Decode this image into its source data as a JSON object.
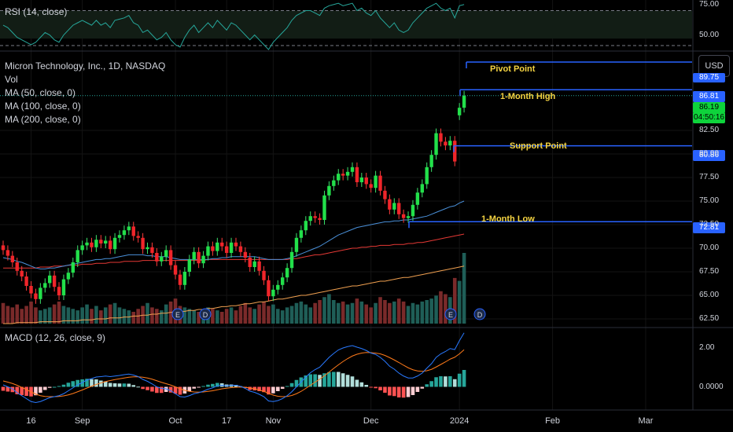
{
  "legend": {
    "rsi": "RSI (14, close)",
    "title": "Micron Technology, Inc., 1D, NASDAQ",
    "vol": "Vol",
    "ma50": "MA (50, close, 0)",
    "ma100": "MA (100, close, 0)",
    "ma200": "MA (200, close, 0)",
    "macd": "MACD (12, 26, close, 9)"
  },
  "currency_button": "USD",
  "price_tags": {
    "pivot": "89.75",
    "high": "86.81",
    "last": "86.19",
    "countdown": "04:50:16",
    "support": "80.86",
    "low": "72.81"
  },
  "annotations": {
    "pivot": "Pivot Point",
    "high": "1-Month High",
    "support": "Support Point",
    "low": "1-Month Low"
  },
  "colors": {
    "up": "#26a69a",
    "down": "#ef5350",
    "ma50": "#4a90d9",
    "ma100": "#e53935",
    "ma200": "#f0a050",
    "macd": "#2979ff",
    "signal": "#ff7a1a",
    "level_line": "#2962ff",
    "annotation": "#f5d442",
    "rsi_line": "#26a69a"
  },
  "chart_data": {
    "type": "candlestick",
    "price_axis": {
      "ticks": [
        62.5,
        65.0,
        67.5,
        70.0,
        72.5,
        75.0,
        77.5,
        80.0,
        82.5
      ],
      "ylim": [
        62.0,
        90.5
      ]
    },
    "rsi_axis": {
      "ticks": [
        "75.00",
        "50.00"
      ],
      "ylim": [
        40,
        80
      ],
      "bands": [
        70,
        30
      ]
    },
    "macd_axis": {
      "ticks": [
        "2.00",
        "0.0000"
      ],
      "ylim": [
        -1.1,
        2.9
      ]
    },
    "x_ticks": [
      {
        "label": "16",
        "index": 6
      },
      {
        "label": "Sep",
        "index": 17
      },
      {
        "label": "Oct",
        "index": 37
      },
      {
        "label": "17",
        "index": 48
      },
      {
        "label": "Nov",
        "index": 58
      },
      {
        "label": "Dec",
        "index": 79
      },
      {
        "label": "2024",
        "index": 98
      },
      {
        "label": "Feb",
        "index": 118
      },
      {
        "label": "Mar",
        "index": 138
      }
    ],
    "levels": [
      {
        "name": "Pivot Point",
        "price": 89.75
      },
      {
        "name": "1-Month High",
        "price": 86.81
      },
      {
        "name": "Support Point",
        "price": 80.86
      },
      {
        "name": "1-Month Low",
        "price": 72.81
      }
    ],
    "close": [
      69.8,
      69.2,
      68.5,
      67.6,
      67.0,
      66.0,
      65.2,
      64.6,
      65.8,
      66.3,
      67.1,
      65.9,
      65.0,
      66.7,
      67.4,
      68.5,
      69.8,
      70.3,
      70.6,
      70.1,
      70.9,
      70.5,
      70.8,
      69.9,
      71.1,
      71.4,
      71.9,
      72.3,
      71.3,
      71.1,
      69.9,
      70.1,
      69.5,
      68.6,
      69.1,
      69.8,
      68.2,
      67.2,
      66.1,
      67.5,
      68.8,
      69.6,
      68.4,
      69.2,
      70.2,
      69.7,
      70.6,
      70.2,
      69.5,
      70.6,
      70.2,
      69.6,
      69.0,
      68.0,
      68.6,
      67.6,
      66.6,
      64.9,
      65.6,
      66.1,
      66.9,
      67.9,
      69.6,
      71.1,
      71.9,
      72.9,
      73.4,
      73.2,
      73.0,
      75.6,
      76.6,
      77.2,
      77.9,
      77.7,
      78.1,
      78.6,
      77.0,
      77.5,
      76.8,
      76.4,
      77.7,
      76.1,
      75.2,
      74.1,
      74.8,
      73.6,
      73.2,
      73.4,
      74.6,
      75.9,
      76.8,
      78.6,
      79.9,
      82.2,
      81.3,
      80.9,
      81.4,
      79.2,
      84.9,
      86.19
    ],
    "open": [
      70.3,
      69.8,
      69.2,
      68.5,
      67.6,
      67.0,
      66.0,
      65.2,
      64.6,
      65.8,
      66.3,
      67.1,
      65.9,
      65.0,
      66.7,
      67.4,
      68.5,
      69.8,
      70.3,
      70.6,
      70.1,
      70.9,
      70.5,
      70.8,
      69.9,
      71.1,
      71.4,
      71.9,
      72.3,
      71.3,
      71.1,
      69.9,
      70.1,
      69.5,
      68.6,
      69.1,
      69.8,
      68.2,
      67.2,
      66.1,
      67.5,
      68.8,
      69.6,
      68.4,
      69.2,
      70.2,
      69.7,
      70.6,
      70.2,
      69.5,
      70.6,
      70.2,
      69.6,
      69.0,
      68.0,
      68.6,
      67.6,
      66.6,
      64.9,
      65.6,
      66.1,
      66.9,
      67.9,
      69.6,
      71.1,
      71.9,
      72.9,
      73.4,
      73.2,
      73.0,
      75.6,
      76.6,
      77.2,
      77.9,
      77.7,
      78.1,
      78.6,
      77.0,
      77.5,
      76.8,
      76.4,
      77.7,
      76.1,
      75.2,
      74.1,
      74.8,
      73.6,
      73.2,
      73.4,
      74.6,
      75.9,
      76.8,
      78.6,
      79.9,
      82.2,
      81.3,
      80.9,
      81.4,
      84.1,
      84.9
    ],
    "volume": [
      28,
      24,
      22,
      26,
      20,
      24,
      30,
      22,
      18,
      20,
      22,
      26,
      30,
      24,
      22,
      20,
      18,
      22,
      26,
      20,
      24,
      18,
      22,
      26,
      28,
      22,
      20,
      18,
      16,
      20,
      24,
      28,
      22,
      20,
      18,
      26,
      30,
      34,
      24,
      22,
      20,
      18,
      16,
      18,
      22,
      20,
      18,
      16,
      20,
      22,
      18,
      24,
      28,
      22,
      20,
      26,
      30,
      24,
      26,
      20,
      18,
      22,
      24,
      28,
      30,
      26,
      22,
      28,
      32,
      36,
      40,
      32,
      28,
      30,
      26,
      28,
      34,
      30,
      26,
      22,
      28,
      36,
      32,
      28,
      30,
      34,
      30,
      24,
      28,
      26,
      30,
      32,
      34,
      38,
      44,
      40,
      36,
      62,
      58,
      96
    ],
    "ma50": [
      69.0,
      68.9,
      68.8,
      68.6,
      68.5,
      68.3,
      68.1,
      67.9,
      67.8,
      67.8,
      67.9,
      67.9,
      68.0,
      68.1,
      68.2,
      68.3,
      68.4,
      68.5,
      68.6,
      68.7,
      68.8,
      68.8,
      68.9,
      68.9,
      69.0,
      69.1,
      69.2,
      69.3,
      69.3,
      69.3,
      69.3,
      69.2,
      69.2,
      69.1,
      69.1,
      69.1,
      69.0,
      68.9,
      68.8,
      68.8,
      68.8,
      68.8,
      68.8,
      68.8,
      68.8,
      68.9,
      68.9,
      69.0,
      69.0,
      69.1,
      69.1,
      69.1,
      69.1,
      69.1,
      69.1,
      69.0,
      68.9,
      68.8,
      68.8,
      68.8,
      68.8,
      68.9,
      69.0,
      69.2,
      69.4,
      69.6,
      69.8,
      70.0,
      70.2,
      70.5,
      70.8,
      71.1,
      71.4,
      71.6,
      71.8,
      72.0,
      72.2,
      72.3,
      72.4,
      72.5,
      72.6,
      72.7,
      72.8,
      72.8,
      72.9,
      72.9,
      73.0,
      73.0,
      73.1,
      73.2,
      73.3,
      73.4,
      73.6,
      73.8,
      74.0,
      74.2,
      74.4,
      74.5,
      74.8,
      75.0
    ],
    "ma100": [
      67.9,
      67.9,
      67.9,
      67.9,
      67.9,
      67.9,
      67.9,
      67.9,
      68.0,
      68.0,
      68.0,
      68.1,
      68.1,
      68.1,
      68.2,
      68.2,
      68.2,
      68.3,
      68.3,
      68.3,
      68.4,
      68.4,
      68.4,
      68.5,
      68.5,
      68.5,
      68.6,
      68.6,
      68.6,
      68.6,
      68.7,
      68.7,
      68.7,
      68.7,
      68.7,
      68.7,
      68.7,
      68.7,
      68.7,
      68.7,
      68.7,
      68.7,
      68.7,
      68.7,
      68.8,
      68.8,
      68.8,
      68.8,
      68.8,
      68.8,
      68.8,
      68.8,
      68.8,
      68.8,
      68.8,
      68.8,
      68.8,
      68.8,
      68.8,
      68.8,
      68.8,
      68.8,
      68.9,
      68.9,
      69.0,
      69.1,
      69.2,
      69.3,
      69.3,
      69.4,
      69.5,
      69.6,
      69.7,
      69.8,
      69.9,
      70.0,
      70.0,
      70.1,
      70.1,
      70.2,
      70.2,
      70.3,
      70.3,
      70.3,
      70.4,
      70.4,
      70.4,
      70.5,
      70.5,
      70.6,
      70.6,
      70.7,
      70.8,
      70.9,
      71.0,
      71.1,
      71.2,
      71.3,
      71.4,
      71.5
    ],
    "ma200": [
      62.0,
      62.0,
      62.0,
      62.1,
      62.1,
      62.1,
      62.1,
      62.1,
      62.2,
      62.2,
      62.2,
      62.2,
      62.2,
      62.3,
      62.3,
      62.3,
      62.3,
      62.4,
      62.4,
      62.4,
      62.5,
      62.5,
      62.5,
      62.6,
      62.6,
      62.6,
      62.7,
      62.7,
      62.8,
      62.8,
      62.9,
      62.9,
      63.0,
      63.0,
      63.1,
      63.1,
      63.2,
      63.2,
      63.3,
      63.3,
      63.4,
      63.4,
      63.5,
      63.5,
      63.6,
      63.6,
      63.7,
      63.8,
      63.8,
      63.9,
      63.9,
      64.0,
      64.1,
      64.1,
      64.2,
      64.3,
      64.3,
      64.4,
      64.5,
      64.6,
      64.6,
      64.7,
      64.8,
      64.9,
      65.0,
      65.0,
      65.1,
      65.2,
      65.3,
      65.4,
      65.5,
      65.6,
      65.7,
      65.8,
      65.9,
      66.0,
      66.0,
      66.1,
      66.2,
      66.3,
      66.4,
      66.5,
      66.5,
      66.6,
      66.7,
      66.8,
      66.9,
      66.9,
      67.0,
      67.1,
      67.2,
      67.3,
      67.4,
      67.5,
      67.6,
      67.7,
      67.8,
      67.9,
      68.0,
      68.1
    ],
    "rsi": [
      58,
      56,
      52,
      48,
      46,
      44,
      42,
      44,
      48,
      52,
      50,
      46,
      44,
      50,
      54,
      58,
      60,
      62,
      60,
      58,
      62,
      58,
      60,
      56,
      62,
      63,
      64,
      66,
      60,
      58,
      52,
      54,
      50,
      46,
      48,
      52,
      46,
      42,
      40,
      48,
      54,
      58,
      52,
      56,
      60,
      56,
      62,
      58,
      54,
      60,
      58,
      54,
      50,
      46,
      50,
      46,
      42,
      38,
      44,
      48,
      52,
      56,
      62,
      66,
      68,
      70,
      70,
      68,
      66,
      72,
      74,
      75,
      76,
      74,
      75,
      76,
      70,
      72,
      68,
      66,
      70,
      64,
      60,
      56,
      60,
      54,
      52,
      54,
      60,
      64,
      68,
      72,
      74,
      76,
      72,
      70,
      72,
      64,
      74,
      75
    ],
    "macd": [
      0.1,
      0.0,
      -0.1,
      -0.3,
      -0.45,
      -0.6,
      -0.75,
      -0.8,
      -0.75,
      -0.65,
      -0.55,
      -0.5,
      -0.45,
      -0.35,
      -0.2,
      -0.05,
      0.1,
      0.22,
      0.35,
      0.42,
      0.5,
      0.52,
      0.55,
      0.52,
      0.55,
      0.58,
      0.62,
      0.65,
      0.6,
      0.52,
      0.38,
      0.28,
      0.15,
      0.0,
      -0.08,
      -0.1,
      -0.2,
      -0.35,
      -0.5,
      -0.52,
      -0.45,
      -0.35,
      -0.3,
      -0.22,
      -0.12,
      -0.05,
      0.05,
      0.08,
      0.05,
      0.08,
      0.08,
      0.02,
      -0.08,
      -0.22,
      -0.28,
      -0.38,
      -0.5,
      -0.72,
      -0.75,
      -0.7,
      -0.6,
      -0.45,
      -0.25,
      0.0,
      0.25,
      0.5,
      0.72,
      0.88,
      1.0,
      1.25,
      1.5,
      1.7,
      1.88,
      1.98,
      2.05,
      2.1,
      2.02,
      1.95,
      1.85,
      1.72,
      1.65,
      1.5,
      1.3,
      1.05,
      0.9,
      0.7,
      0.55,
      0.45,
      0.45,
      0.55,
      0.7,
      0.95,
      1.18,
      1.5,
      1.68,
      1.8,
      1.95,
      1.9,
      2.35,
      2.75
    ],
    "signal": [
      0.3,
      0.24,
      0.17,
      0.08,
      -0.03,
      -0.14,
      -0.26,
      -0.37,
      -0.45,
      -0.49,
      -0.5,
      -0.5,
      -0.49,
      -0.46,
      -0.41,
      -0.34,
      -0.25,
      -0.16,
      -0.06,
      0.03,
      0.12,
      0.2,
      0.27,
      0.32,
      0.37,
      0.41,
      0.45,
      0.49,
      0.51,
      0.51,
      0.49,
      0.45,
      0.39,
      0.31,
      0.23,
      0.16,
      0.09,
      0.0,
      -0.1,
      -0.18,
      -0.23,
      -0.26,
      -0.27,
      -0.26,
      -0.23,
      -0.2,
      -0.15,
      -0.1,
      -0.07,
      -0.04,
      -0.02,
      -0.01,
      -0.02,
      -0.06,
      -0.1,
      -0.16,
      -0.23,
      -0.33,
      -0.42,
      -0.48,
      -0.5,
      -0.49,
      -0.44,
      -0.35,
      -0.23,
      -0.08,
      0.08,
      0.24,
      0.39,
      0.56,
      0.75,
      0.94,
      1.12,
      1.29,
      1.44,
      1.57,
      1.66,
      1.72,
      1.75,
      1.74,
      1.72,
      1.68,
      1.6,
      1.49,
      1.37,
      1.24,
      1.1,
      0.97,
      0.87,
      0.81,
      0.79,
      0.82,
      0.89,
      1.01,
      1.14,
      1.27,
      1.41,
      1.51,
      1.68,
      1.89
    ]
  }
}
